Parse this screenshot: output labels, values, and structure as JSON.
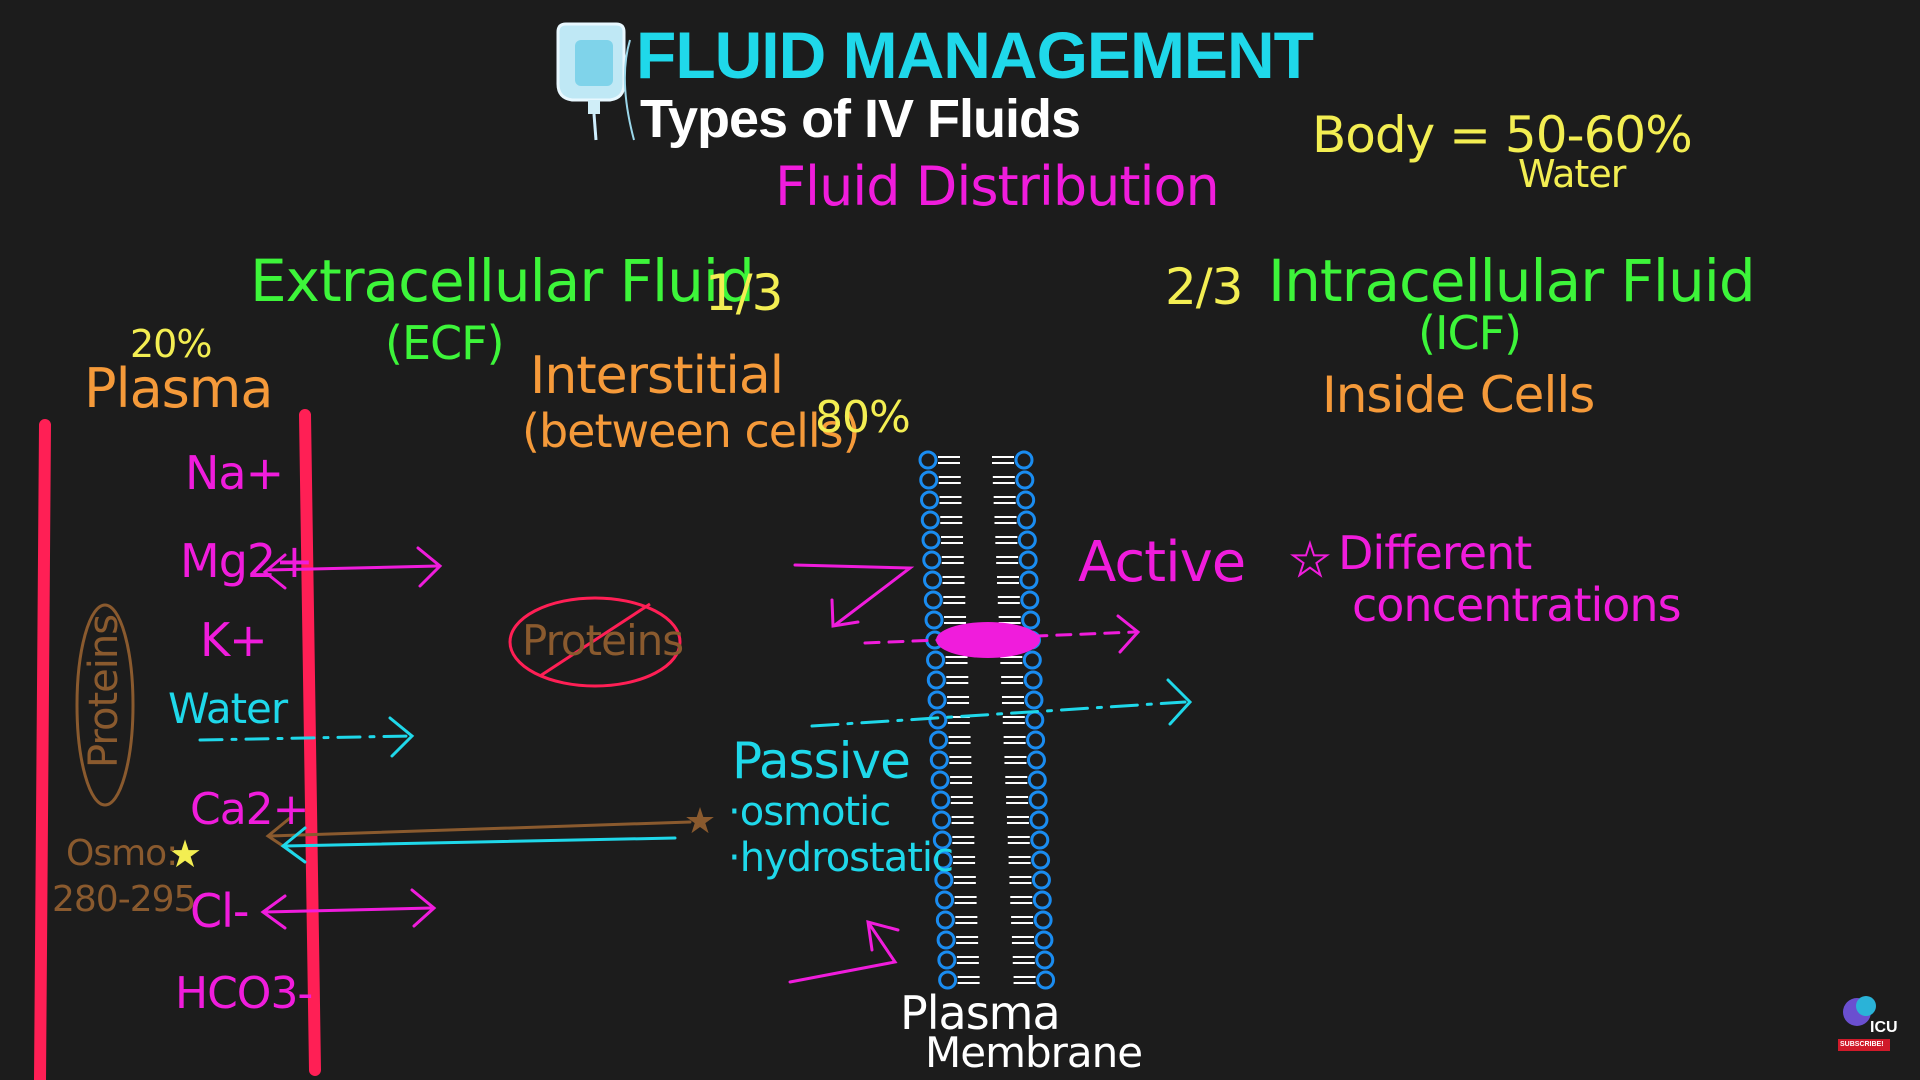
{
  "header": {
    "title": "FLUID MANAGEMENT",
    "subtitle": "Types of IV Fluids",
    "section": "Fluid Distribution"
  },
  "body_note": {
    "line1": "Body = 50-60%",
    "line2": "Water"
  },
  "ecf": {
    "title": "Extracellular Fluid",
    "fraction": "1/3",
    "abbr": "(ECF)",
    "plasma_pct": "20%",
    "plasma_label": "Plasma",
    "interstitial_label": "Interstitial",
    "interstitial_desc": "(between cells)",
    "interstitial_pct": "80%"
  },
  "icf": {
    "fraction": "2/3",
    "title": "Intracellular Fluid",
    "abbr": "(ICF)",
    "desc": "Inside Cells"
  },
  "plasma_items": [
    {
      "label": "Na+"
    },
    {
      "label": "Mg2+"
    },
    {
      "label": "K+"
    },
    {
      "label": "Water"
    },
    {
      "label": "Ca2+"
    },
    {
      "label": "Cl-"
    },
    {
      "label": "HCO3-"
    }
  ],
  "plasma_proteins": "Proteins",
  "osmo": {
    "label": "Osmo:",
    "range": "280-295"
  },
  "interstitial_proteins": "Proteins",
  "transport": {
    "active": "Active",
    "passive": "Passive",
    "passive_items": [
      "·osmotic",
      "·hydrostatic"
    ]
  },
  "note": {
    "line1": "Different",
    "line2": "concentrations"
  },
  "membrane": {
    "line1": "Plasma",
    "line2": "Membrane"
  },
  "logo": {
    "text": "ICU",
    "badge": "SUBSCRIBE!"
  },
  "colors": {
    "background": "#1c1c1c",
    "cyan": "#1fd8ea",
    "white": "#ffffff",
    "magenta": "#f01cdc",
    "yellow": "#f3ee52",
    "green": "#3df53a",
    "orange": "#f59a3a",
    "red": "#ff1f55",
    "brown": "#8a5a2e",
    "blue": "#1a8cf0"
  }
}
